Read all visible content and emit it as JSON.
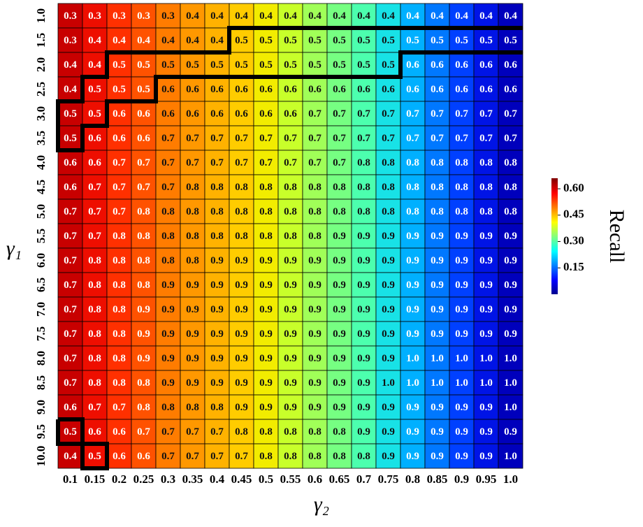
{
  "chart_data": {
    "type": "heatmap",
    "xlabel": "γ₂",
    "ylabel": "γ₁",
    "x": [
      "0.1",
      "0.15",
      "0.2",
      "0.25",
      "0.3",
      "0.35",
      "0.4",
      "0.45",
      "0.5",
      "0.55",
      "0.6",
      "0.65",
      "0.7",
      "0.75",
      "0.8",
      "0.85",
      "0.9",
      "0.95",
      "1.0"
    ],
    "y": [
      "1.0",
      "1.5",
      "2.0",
      "2.5",
      "3.0",
      "3.5",
      "4.0",
      "4.5",
      "5.0",
      "5.5",
      "6.0",
      "6.5",
      "7.0",
      "7.5",
      "8.0",
      "8.5",
      "9.0",
      "9.5",
      "10.0"
    ],
    "colors": [
      "#c80000",
      "#ee0e00",
      "#ff3000",
      "#ff5200",
      "#ff7c00",
      "#ff9800",
      "#ffb200",
      "#ffcc00",
      "#f2ec00",
      "#c8ff2a",
      "#a0ff58",
      "#76ff82",
      "#4cffae",
      "#18e2e6",
      "#00b0ff",
      "#0078ff",
      "#0040ff",
      "#0014e6",
      "#0000bc"
    ],
    "values": [
      [
        0.3,
        0.3,
        0.3,
        0.3,
        0.3,
        0.4,
        0.4,
        0.4,
        0.4,
        0.4,
        0.4,
        0.4,
        0.4,
        0.4,
        0.4,
        0.4,
        0.4,
        0.4,
        0.4
      ],
      [
        0.3,
        0.4,
        0.4,
        0.4,
        0.4,
        0.4,
        0.4,
        0.5,
        0.5,
        0.5,
        0.5,
        0.5,
        0.5,
        0.5,
        0.5,
        0.5,
        0.5,
        0.5,
        0.5
      ],
      [
        0.4,
        0.4,
        0.5,
        0.5,
        0.5,
        0.5,
        0.5,
        0.5,
        0.5,
        0.5,
        0.5,
        0.5,
        0.5,
        0.5,
        0.6,
        0.6,
        0.6,
        0.6,
        0.6
      ],
      [
        0.4,
        0.5,
        0.5,
        0.5,
        0.6,
        0.6,
        0.6,
        0.6,
        0.6,
        0.6,
        0.6,
        0.6,
        0.6,
        0.6,
        0.6,
        0.6,
        0.6,
        0.6,
        0.6
      ],
      [
        0.5,
        0.5,
        0.6,
        0.6,
        0.6,
        0.6,
        0.6,
        0.6,
        0.6,
        0.6,
        0.7,
        0.7,
        0.7,
        0.7,
        0.7,
        0.7,
        0.7,
        0.7,
        0.7
      ],
      [
        0.5,
        0.6,
        0.6,
        0.6,
        0.7,
        0.7,
        0.7,
        0.7,
        0.7,
        0.7,
        0.7,
        0.7,
        0.7,
        0.7,
        0.7,
        0.7,
        0.7,
        0.7,
        0.7
      ],
      [
        0.6,
        0.6,
        0.7,
        0.7,
        0.7,
        0.7,
        0.7,
        0.7,
        0.7,
        0.7,
        0.7,
        0.7,
        0.8,
        0.8,
        0.8,
        0.8,
        0.8,
        0.8,
        0.8
      ],
      [
        0.6,
        0.7,
        0.7,
        0.7,
        0.7,
        0.8,
        0.8,
        0.8,
        0.8,
        0.8,
        0.8,
        0.8,
        0.8,
        0.8,
        0.8,
        0.8,
        0.8,
        0.8,
        0.8
      ],
      [
        0.7,
        0.7,
        0.7,
        0.8,
        0.8,
        0.8,
        0.8,
        0.8,
        0.8,
        0.8,
        0.8,
        0.8,
        0.8,
        0.8,
        0.8,
        0.8,
        0.8,
        0.8,
        0.8
      ],
      [
        0.7,
        0.7,
        0.8,
        0.8,
        0.8,
        0.8,
        0.8,
        0.8,
        0.8,
        0.8,
        0.8,
        0.9,
        0.9,
        0.9,
        0.9,
        0.9,
        0.9,
        0.9,
        0.9
      ],
      [
        0.7,
        0.8,
        0.8,
        0.8,
        0.8,
        0.8,
        0.9,
        0.9,
        0.9,
        0.9,
        0.9,
        0.9,
        0.9,
        0.9,
        0.9,
        0.9,
        0.9,
        0.9,
        0.9
      ],
      [
        0.7,
        0.8,
        0.8,
        0.8,
        0.9,
        0.9,
        0.9,
        0.9,
        0.9,
        0.9,
        0.9,
        0.9,
        0.9,
        0.9,
        0.9,
        0.9,
        0.9,
        0.9,
        0.9
      ],
      [
        0.7,
        0.8,
        0.8,
        0.9,
        0.9,
        0.9,
        0.9,
        0.9,
        0.9,
        0.9,
        0.9,
        0.9,
        0.9,
        0.9,
        0.9,
        0.9,
        0.9,
        0.9,
        0.9
      ],
      [
        0.7,
        0.8,
        0.8,
        0.9,
        0.9,
        0.9,
        0.9,
        0.9,
        0.9,
        0.9,
        0.9,
        0.9,
        0.9,
        0.9,
        0.9,
        0.9,
        0.9,
        0.9,
        0.9
      ],
      [
        0.7,
        0.8,
        0.8,
        0.9,
        0.9,
        0.9,
        0.9,
        0.9,
        0.9,
        0.9,
        0.9,
        0.9,
        0.9,
        0.9,
        1.0,
        1.0,
        1.0,
        1.0,
        1.0
      ],
      [
        0.7,
        0.8,
        0.8,
        0.8,
        0.9,
        0.9,
        0.9,
        0.9,
        0.9,
        0.9,
        0.9,
        0.9,
        0.9,
        1.0,
        1.0,
        1.0,
        1.0,
        1.0,
        1.0
      ],
      [
        0.6,
        0.7,
        0.7,
        0.8,
        0.8,
        0.8,
        0.8,
        0.9,
        0.9,
        0.9,
        0.9,
        0.9,
        0.9,
        0.9,
        0.9,
        0.9,
        0.9,
        0.9,
        1.0
      ],
      [
        0.5,
        0.6,
        0.6,
        0.7,
        0.7,
        0.7,
        0.7,
        0.8,
        0.8,
        0.8,
        0.8,
        0.8,
        0.9,
        0.9,
        0.9,
        0.9,
        0.9,
        0.9,
        0.9
      ],
      [
        0.4,
        0.5,
        0.6,
        0.6,
        0.7,
        0.7,
        0.7,
        0.7,
        0.8,
        0.8,
        0.8,
        0.8,
        0.8,
        0.9,
        0.9,
        0.9,
        0.9,
        0.9,
        1.0
      ]
    ],
    "value_labels": [
      [
        "0.3",
        "0.3",
        "0.3",
        "0.3",
        "0.3",
        "0.4",
        "0.4",
        "0.4",
        "0.4",
        "0.4",
        "0.4",
        "0.4",
        "0.4",
        "0.4",
        "0.4",
        "0.4",
        "0.4",
        "0.4",
        "0.4"
      ],
      [
        "0.3",
        "0.4",
        "0.4",
        "0.4",
        "0.4",
        "0.4",
        "0.4",
        "0.5",
        "0.5",
        "0.5",
        "0.5",
        "0.5",
        "0.5",
        "0.5",
        "0.5",
        "0.5",
        "0.5",
        "0.5",
        "0.5"
      ],
      [
        "0.4",
        "0.4",
        "0.5",
        "0.5",
        "0.5",
        "0.5",
        "0.5",
        "0.5",
        "0.5",
        "0.5",
        "0.5",
        "0.5",
        "0.5",
        "0.5",
        "0.6",
        "0.6",
        "0.6",
        "0.6",
        "0.6"
      ],
      [
        "0.4",
        "0.5",
        "0.5",
        "0.5",
        "0.6",
        "0.6",
        "0.6",
        "0.6",
        "0.6",
        "0.6",
        "0.6",
        "0.6",
        "0.6",
        "0.6",
        "0.6",
        "0.6",
        "0.6",
        "0.6",
        "0.6"
      ],
      [
        "0.5",
        "0.5",
        "0.6",
        "0.6",
        "0.6",
        "0.6",
        "0.6",
        "0.6",
        "0.6",
        "0.6",
        "0.7",
        "0.7",
        "0.7",
        "0.7",
        "0.7",
        "0.7",
        "0.7",
        "0.7",
        "0.7"
      ],
      [
        "0.5",
        "0.6",
        "0.6",
        "0.6",
        "0.7",
        "0.7",
        "0.7",
        "0.7",
        "0.7",
        "0.7",
        "0.7",
        "0.7",
        "0.7",
        "0.7",
        "0.7",
        "0.7",
        "0.7",
        "0.7",
        "0.7"
      ],
      [
        "0.6",
        "0.6",
        "0.7",
        "0.7",
        "0.7",
        "0.7",
        "0.7",
        "0.7",
        "0.7",
        "0.7",
        "0.7",
        "0.7",
        "0.8",
        "0.8",
        "0.8",
        "0.8",
        "0.8",
        "0.8",
        "0.8"
      ],
      [
        "0.6",
        "0.7",
        "0.7",
        "0.7",
        "0.7",
        "0.8",
        "0.8",
        "0.8",
        "0.8",
        "0.8",
        "0.8",
        "0.8",
        "0.8",
        "0.8",
        "0.8",
        "0.8",
        "0.8",
        "0.8",
        "0.8"
      ],
      [
        "0.7",
        "0.7",
        "0.7",
        "0.8",
        "0.8",
        "0.8",
        "0.8",
        "0.8",
        "0.8",
        "0.8",
        "0.8",
        "0.8",
        "0.8",
        "0.8",
        "0.8",
        "0.8",
        "0.8",
        "0.8",
        "0.8"
      ],
      [
        "0.7",
        "0.7",
        "0.8",
        "0.8",
        "0.8",
        "0.8",
        "0.8",
        "0.8",
        "0.8",
        "0.8",
        "0.8",
        "0.9",
        "0.9",
        "0.9",
        "0.9",
        "0.9",
        "0.9",
        "0.9",
        "0.9"
      ],
      [
        "0.7",
        "0.8",
        "0.8",
        "0.8",
        "0.8",
        "0.8",
        "0.9",
        "0.9",
        "0.9",
        "0.9",
        "0.9",
        "0.9",
        "0.9",
        "0.9",
        "0.9",
        "0.9",
        "0.9",
        "0.9",
        "0.9"
      ],
      [
        "0.7",
        "0.8",
        "0.8",
        "0.8",
        "0.9",
        "0.9",
        "0.9",
        "0.9",
        "0.9",
        "0.9",
        "0.9",
        "0.9",
        "0.9",
        "0.9",
        "0.9",
        "0.9",
        "0.9",
        "0.9",
        "0.9"
      ],
      [
        "0.7",
        "0.8",
        "0.8",
        "0.9",
        "0.9",
        "0.9",
        "0.9",
        "0.9",
        "0.9",
        "0.9",
        "0.9",
        "0.9",
        "0.9",
        "0.9",
        "0.9",
        "0.9",
        "0.9",
        "0.9",
        "0.9"
      ],
      [
        "0.7",
        "0.8",
        "0.8",
        "0.9",
        "0.9",
        "0.9",
        "0.9",
        "0.9",
        "0.9",
        "0.9",
        "0.9",
        "0.9",
        "0.9",
        "0.9",
        "0.9",
        "0.9",
        "0.9",
        "0.9",
        "0.9"
      ],
      [
        "0.7",
        "0.8",
        "0.8",
        "0.9",
        "0.9",
        "0.9",
        "0.9",
        "0.9",
        "0.9",
        "0.9",
        "0.9",
        "0.9",
        "0.9",
        "0.9",
        "1.0",
        "1.0",
        "1.0",
        "1.0",
        "1.0"
      ],
      [
        "0.7",
        "0.8",
        "0.8",
        "0.8",
        "0.9",
        "0.9",
        "0.9",
        "0.9",
        "0.9",
        "0.9",
        "0.9",
        "0.9",
        "0.9",
        "1.0",
        "1.0",
        "1.0",
        "1.0",
        "1.0",
        "1.0"
      ],
      [
        "0.6",
        "0.7",
        "0.7",
        "0.8",
        "0.8",
        "0.8",
        "0.8",
        "0.9",
        "0.9",
        "0.9",
        "0.9",
        "0.9",
        "0.9",
        "0.9",
        "0.9",
        "0.9",
        "0.9",
        "0.9",
        "1.0"
      ],
      [
        "0.5",
        "0.6",
        "0.6",
        "0.7",
        "0.7",
        "0.7",
        "0.7",
        "0.8",
        "0.8",
        "0.8",
        "0.8",
        "0.8",
        "0.9",
        "0.9",
        "0.9",
        "0.9",
        "0.9",
        "0.9",
        "0.9"
      ],
      [
        "0.4",
        "0.5",
        "0.6",
        "0.6",
        "0.7",
        "0.7",
        "0.7",
        "0.7",
        "0.8",
        "0.8",
        "0.8",
        "0.8",
        "0.8",
        "0.9",
        "0.9",
        "0.9",
        "0.9",
        "0.9",
        "1.0"
      ]
    ],
    "colorbar": {
      "label": "Recall",
      "zlim": [
        0,
        0.66
      ],
      "ticks": [
        0.15,
        {
          "value": 0.3,
          "label": "0.30"
        },
        0.45,
        {
          "value": 0.6,
          "label": "0.60"
        }
      ]
    }
  }
}
